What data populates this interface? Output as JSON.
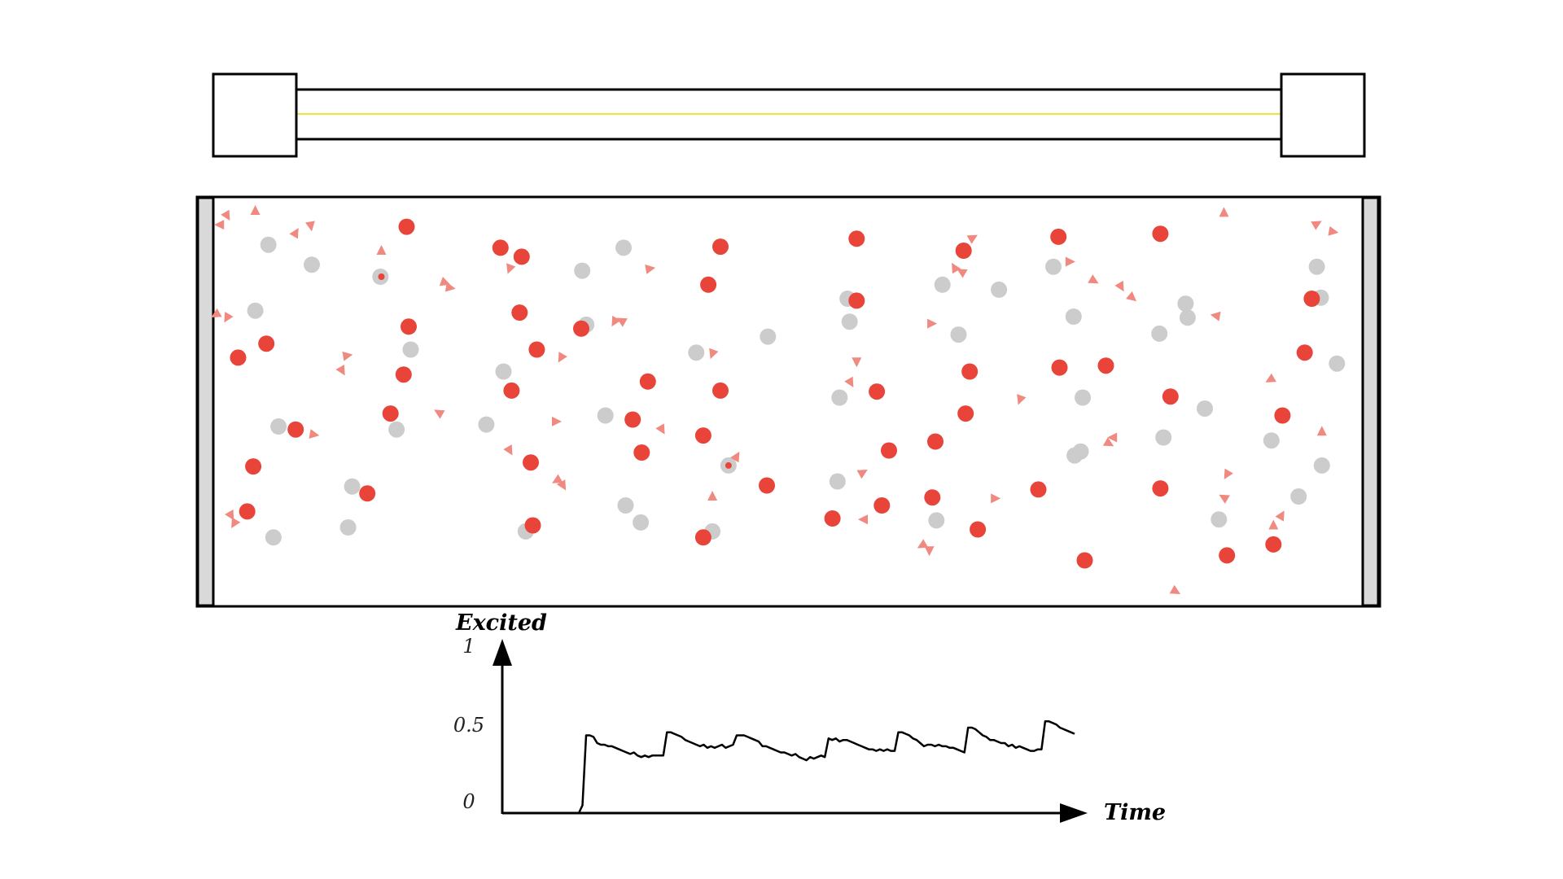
{
  "colors": {
    "excited": "#e8443a",
    "ground": "#cccccc",
    "photon": "#f08a80",
    "beam": "#f2e33a",
    "mirror": "#d9d9d9",
    "stroke": "#000000"
  },
  "chart_data": {
    "type": "line",
    "xlabel": "",
    "ylabel": "",
    "ylim": [
      0,
      1
    ],
    "y_ticks": [
      "0",
      "0.5",
      "1"
    ],
    "x_axis_label": "Time",
    "y_axis_label": "Excited",
    "series": [
      {
        "values": [
          0,
          0.05,
          0.5,
          0.5,
          0.49,
          0.45,
          0.44,
          0.44,
          0.43,
          0.43,
          0.42,
          0.41,
          0.4,
          0.39,
          0.38,
          0.39,
          0.37,
          0.36,
          0.37,
          0.36,
          0.37,
          0.37,
          0.37,
          0.37,
          0.52,
          0.52,
          0.51,
          0.5,
          0.49,
          0.47,
          0.46,
          0.45,
          0.44,
          0.43,
          0.44,
          0.42,
          0.43,
          0.42,
          0.43,
          0.44,
          0.42,
          0.43,
          0.44,
          0.5,
          0.5,
          0.5,
          0.49,
          0.48,
          0.47,
          0.46,
          0.43,
          0.43,
          0.42,
          0.41,
          0.4,
          0.39,
          0.39,
          0.38,
          0.37,
          0.38,
          0.36,
          0.35,
          0.34,
          0.36,
          0.35,
          0.36,
          0.37,
          0.36,
          0.48,
          0.47,
          0.48,
          0.46,
          0.47,
          0.47,
          0.46,
          0.45,
          0.44,
          0.43,
          0.42,
          0.41,
          0.41,
          0.4,
          0.41,
          0.4,
          0.41,
          0.4,
          0.4,
          0.52,
          0.52,
          0.51,
          0.5,
          0.48,
          0.47,
          0.45,
          0.43,
          0.44,
          0.44,
          0.43,
          0.44,
          0.43,
          0.43,
          0.42,
          0.42,
          0.41,
          0.4,
          0.39,
          0.55,
          0.55,
          0.54,
          0.52,
          0.5,
          0.49,
          0.47,
          0.47,
          0.46,
          0.45,
          0.45,
          0.43,
          0.44,
          0.42,
          0.43,
          0.42,
          0.41,
          0.4,
          0.4,
          0.41,
          0.41,
          0.59,
          0.59,
          0.58,
          0.57,
          0.55,
          0.54,
          0.53,
          0.52,
          0.51
        ]
      }
    ]
  },
  "particles": {
    "excited": [
      [
        403,
        227
      ],
      [
        496,
        248
      ],
      [
        517,
        257
      ],
      [
        714,
        247
      ],
      [
        849,
        239
      ],
      [
        955,
        251
      ],
      [
        1049,
        237
      ],
      [
        1150,
        234
      ],
      [
        702,
        285
      ],
      [
        849,
        301
      ],
      [
        1300,
        299
      ],
      [
        515,
        313
      ],
      [
        405,
        327
      ],
      [
        576,
        329
      ],
      [
        264,
        344
      ],
      [
        236,
        358
      ],
      [
        532,
        350
      ],
      [
        400,
        375
      ],
      [
        1293,
        353
      ],
      [
        1050,
        368
      ],
      [
        1096,
        366
      ],
      [
        961,
        372
      ],
      [
        642,
        382
      ],
      [
        507,
        391
      ],
      [
        714,
        391
      ],
      [
        869,
        392
      ],
      [
        1160,
        397
      ],
      [
        387,
        414
      ],
      [
        627,
        420
      ],
      [
        957,
        414
      ],
      [
        1271,
        416
      ],
      [
        293,
        430
      ],
      [
        697,
        436
      ],
      [
        927,
        442
      ],
      [
        636,
        453
      ],
      [
        881,
        451
      ],
      [
        526,
        463
      ],
      [
        251,
        467
      ],
      [
        760,
        486
      ],
      [
        1029,
        490
      ],
      [
        1150,
        489
      ],
      [
        364,
        494
      ],
      [
        924,
        498
      ],
      [
        874,
        506
      ],
      [
        245,
        512
      ],
      [
        825,
        519
      ],
      [
        528,
        526
      ],
      [
        969,
        530
      ],
      [
        697,
        538
      ],
      [
        1262,
        545
      ],
      [
        1216,
        556
      ],
      [
        1075,
        561
      ]
    ],
    "ground": [
      [
        266,
        245
      ],
      [
        618,
        248
      ],
      [
        309,
        265
      ],
      [
        1044,
        267
      ],
      [
        577,
        271
      ],
      [
        1305,
        267
      ],
      [
        377,
        277
      ],
      [
        934,
        285
      ],
      [
        990,
        290
      ],
      [
        1309,
        298
      ],
      [
        840,
        299
      ],
      [
        1175,
        304
      ],
      [
        253,
        311
      ],
      [
        1064,
        317
      ],
      [
        1177,
        318
      ],
      [
        842,
        322
      ],
      [
        581,
        325
      ],
      [
        950,
        335
      ],
      [
        761,
        337
      ],
      [
        1149,
        334
      ],
      [
        407,
        350
      ],
      [
        690,
        353
      ],
      [
        1325,
        364
      ],
      [
        499,
        372
      ],
      [
        832,
        398
      ],
      [
        1073,
        398
      ],
      [
        1194,
        409
      ],
      [
        600,
        416
      ],
      [
        482,
        425
      ],
      [
        276,
        427
      ],
      [
        393,
        430
      ],
      [
        1153,
        438
      ],
      [
        1260,
        441
      ],
      [
        1071,
        452
      ],
      [
        1065,
        456
      ],
      [
        722,
        466
      ],
      [
        1310,
        466
      ],
      [
        830,
        482
      ],
      [
        349,
        487
      ],
      [
        1287,
        497
      ],
      [
        620,
        506
      ],
      [
        1208,
        520
      ],
      [
        928,
        521
      ],
      [
        635,
        523
      ],
      [
        345,
        528
      ],
      [
        706,
        532
      ],
      [
        521,
        532
      ],
      [
        271,
        538
      ]
    ],
    "excited_small": [
      [
        378,
        277
      ],
      [
        722,
        466
      ]
    ],
    "photons": [
      [
        225,
        216,
        150
      ],
      [
        218,
        225,
        270
      ],
      [
        253,
        211,
        0
      ],
      [
        308,
        226,
        170
      ],
      [
        293,
        233,
        30
      ],
      [
        378,
        251,
        0
      ],
      [
        441,
        283,
        110
      ],
      [
        446,
        288,
        100
      ],
      [
        505,
        269,
        200
      ],
      [
        644,
        269,
        80
      ],
      [
        946,
        268,
        330
      ],
      [
        953,
        272,
        300
      ],
      [
        964,
        238,
        60
      ],
      [
        1060,
        262,
        90
      ],
      [
        1084,
        281,
        120
      ],
      [
        1111,
        287,
        150
      ],
      [
        1122,
        298,
        130
      ],
      [
        1213,
        213,
        0
      ],
      [
        1305,
        224,
        60
      ],
      [
        1321,
        232,
        100
      ],
      [
        214,
        315,
        240
      ],
      [
        225,
        318,
        210
      ],
      [
        344,
        356,
        80
      ],
      [
        339,
        371,
        150
      ],
      [
        556,
        358,
        210
      ],
      [
        609,
        322,
        210
      ],
      [
        616,
        321,
        300
      ],
      [
        706,
        354,
        200
      ],
      [
        923,
        324,
        90
      ],
      [
        849,
        362,
        180
      ],
      [
        843,
        383,
        150
      ],
      [
        1205,
        316,
        280
      ],
      [
        1259,
        380,
        240
      ],
      [
        1011,
        400,
        200
      ],
      [
        1103,
        438,
        270
      ],
      [
        1099,
        444,
        120
      ],
      [
        1310,
        432,
        0
      ],
      [
        435,
        413,
        300
      ],
      [
        311,
        435,
        100
      ],
      [
        551,
        422,
        90
      ],
      [
        656,
        430,
        150
      ],
      [
        730,
        457,
        30
      ],
      [
        505,
        451,
        150
      ],
      [
        552,
        481,
        240
      ],
      [
        558,
        486,
        150
      ],
      [
        855,
        473,
        60
      ],
      [
        856,
        520,
        270
      ],
      [
        914,
        546,
        240
      ],
      [
        921,
        551,
        180
      ],
      [
        986,
        499,
        90
      ],
      [
        1216,
        475,
        210
      ],
      [
        1213,
        498,
        300
      ],
      [
        1270,
        516,
        30
      ],
      [
        1262,
        526,
        0
      ],
      [
        229,
        516,
        150
      ],
      [
        232,
        524,
        210
      ],
      [
        1165,
        592,
        120
      ],
      [
        706,
        497,
        0
      ]
    ]
  }
}
